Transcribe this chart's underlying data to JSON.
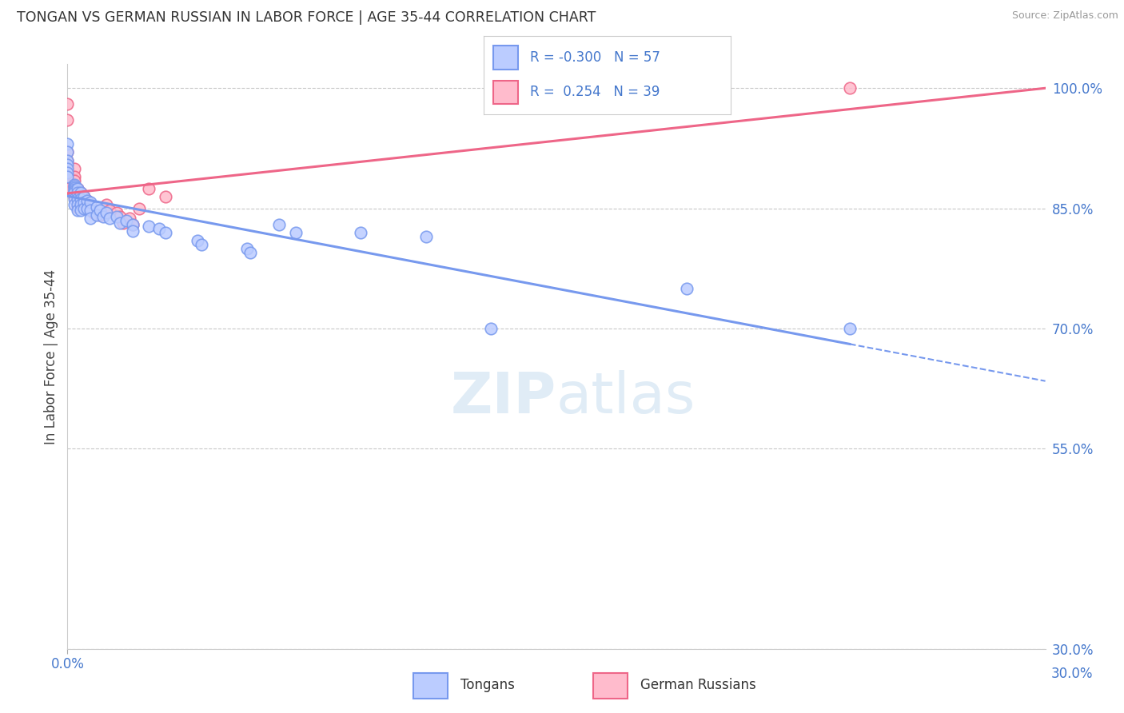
{
  "title": "TONGAN VS GERMAN RUSSIAN IN LABOR FORCE | AGE 35-44 CORRELATION CHART",
  "source": "Source: ZipAtlas.com",
  "ylabel": "In Labor Force | Age 35-44",
  "xlim": [
    0.0,
    0.3
  ],
  "ylim": [
    0.3,
    1.03
  ],
  "ytick_positions": [
    0.3,
    0.55,
    0.7,
    0.85,
    1.0
  ],
  "ytick_labels": [
    "30.0%",
    "55.0%",
    "70.0%",
    "85.0%",
    "100.0%"
  ],
  "background_color": "#ffffff",
  "grid_color": "#c8c8c8",
  "watermark": "ZIPatlas",
  "legend_R1": "-0.300",
  "legend_N1": "57",
  "legend_R2": "0.254",
  "legend_N2": "39",
  "blue_color": "#7799ee",
  "pink_color": "#ee6688",
  "blue_fill": "#bbccff",
  "pink_fill": "#ffbbcc",
  "tongan_x": [
    0.0,
    0.0,
    0.0,
    0.0,
    0.0,
    0.0,
    0.0,
    0.002,
    0.002,
    0.002,
    0.002,
    0.002,
    0.002,
    0.002,
    0.002,
    0.003,
    0.003,
    0.003,
    0.003,
    0.003,
    0.004,
    0.004,
    0.004,
    0.004,
    0.005,
    0.005,
    0.005,
    0.006,
    0.006,
    0.007,
    0.007,
    0.007,
    0.009,
    0.009,
    0.01,
    0.011,
    0.012,
    0.013,
    0.015,
    0.016,
    0.018,
    0.02,
    0.02,
    0.025,
    0.028,
    0.03,
    0.04,
    0.041,
    0.055,
    0.056,
    0.065,
    0.07,
    0.09,
    0.11,
    0.13,
    0.19,
    0.24
  ],
  "tongan_y": [
    0.93,
    0.92,
    0.91,
    0.905,
    0.9,
    0.895,
    0.89,
    0.88,
    0.878,
    0.876,
    0.874,
    0.872,
    0.87,
    0.862,
    0.855,
    0.875,
    0.87,
    0.862,
    0.855,
    0.848,
    0.87,
    0.862,
    0.855,
    0.848,
    0.865,
    0.858,
    0.85,
    0.86,
    0.85,
    0.858,
    0.848,
    0.838,
    0.852,
    0.842,
    0.848,
    0.84,
    0.845,
    0.838,
    0.84,
    0.832,
    0.835,
    0.83,
    0.822,
    0.828,
    0.825,
    0.82,
    0.81,
    0.805,
    0.8,
    0.795,
    0.83,
    0.82,
    0.82,
    0.815,
    0.7,
    0.75,
    0.7
  ],
  "german_x": [
    0.0,
    0.0,
    0.0,
    0.0,
    0.0,
    0.0,
    0.0,
    0.0,
    0.002,
    0.002,
    0.002,
    0.002,
    0.002,
    0.002,
    0.003,
    0.003,
    0.003,
    0.003,
    0.004,
    0.004,
    0.004,
    0.005,
    0.005,
    0.006,
    0.006,
    0.007,
    0.008,
    0.01,
    0.012,
    0.013,
    0.015,
    0.016,
    0.017,
    0.019,
    0.02,
    0.022,
    0.025,
    0.03,
    0.24
  ],
  "german_y": [
    0.98,
    0.96,
    0.92,
    0.91,
    0.9,
    0.895,
    0.885,
    0.875,
    0.9,
    0.89,
    0.885,
    0.878,
    0.872,
    0.865,
    0.875,
    0.868,
    0.86,
    0.852,
    0.87,
    0.862,
    0.855,
    0.865,
    0.855,
    0.86,
    0.85,
    0.855,
    0.845,
    0.842,
    0.855,
    0.848,
    0.845,
    0.84,
    0.832,
    0.838,
    0.83,
    0.85,
    0.875,
    0.865,
    1.0
  ]
}
